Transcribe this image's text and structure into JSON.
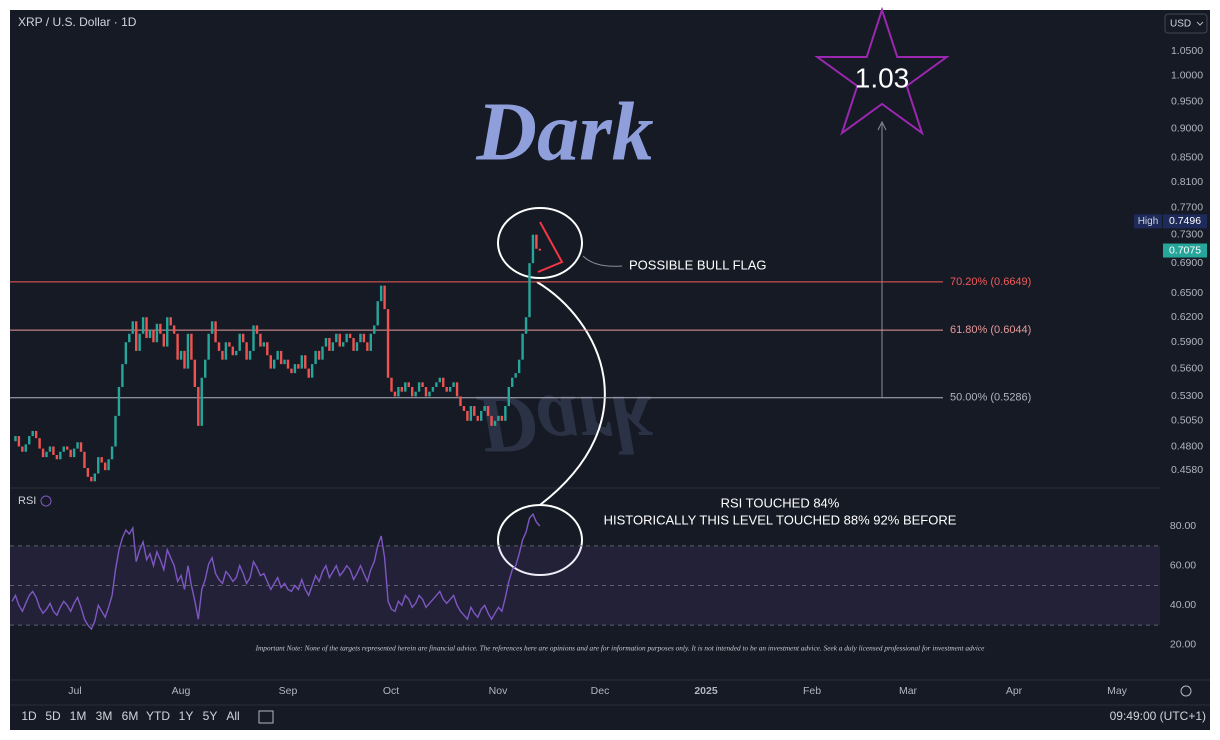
{
  "chart_data": {
    "type": "candlestick",
    "title": "XRP / U.S. Dollar · 1D",
    "currency": "USD",
    "log_scale": true,
    "up_color": "#26a69a",
    "down_color": "#ef5350",
    "closes": [
      0.485,
      0.49,
      0.48,
      0.475,
      0.482,
      0.49,
      0.495,
      0.488,
      0.478,
      0.47,
      0.475,
      0.48,
      0.472,
      0.468,
      0.475,
      0.48,
      0.477,
      0.47,
      0.478,
      0.484,
      0.475,
      0.46,
      0.452,
      0.448,
      0.455,
      0.47,
      0.465,
      0.458,
      0.468,
      0.48,
      0.51,
      0.54,
      0.565,
      0.59,
      0.6,
      0.615,
      0.58,
      0.6,
      0.62,
      0.595,
      0.605,
      0.59,
      0.612,
      0.6,
      0.585,
      0.62,
      0.61,
      0.6,
      0.57,
      0.58,
      0.56,
      0.6,
      0.57,
      0.54,
      0.5,
      0.55,
      0.57,
      0.6,
      0.615,
      0.59,
      0.58,
      0.57,
      0.59,
      0.585,
      0.575,
      0.58,
      0.6,
      0.59,
      0.57,
      0.58,
      0.61,
      0.6,
      0.585,
      0.59,
      0.575,
      0.56,
      0.57,
      0.58,
      0.565,
      0.57,
      0.56,
      0.555,
      0.565,
      0.56,
      0.575,
      0.56,
      0.55,
      0.565,
      0.58,
      0.57,
      0.585,
      0.595,
      0.58,
      0.59,
      0.6,
      0.585,
      0.59,
      0.6,
      0.595,
      0.58,
      0.59,
      0.6,
      0.59,
      0.58,
      0.6,
      0.61,
      0.64,
      0.66,
      0.63,
      0.55,
      0.535,
      0.53,
      0.54,
      0.535,
      0.545,
      0.54,
      0.53,
      0.535,
      0.545,
      0.54,
      0.53,
      0.535,
      0.54,
      0.545,
      0.55,
      0.54,
      0.535,
      0.54,
      0.545,
      0.53,
      0.52,
      0.515,
      0.505,
      0.52,
      0.51,
      0.505,
      0.515,
      0.52,
      0.51,
      0.5,
      0.505,
      0.51,
      0.505,
      0.52,
      0.54,
      0.55,
      0.555,
      0.57,
      0.6,
      0.62,
      0.69,
      0.73,
      0.71,
      0.7075
    ],
    "ylim": [
      0.443,
      1.139
    ],
    "yticks": [
      {
        "value": 1.05,
        "label": "1.0500"
      },
      {
        "value": 1.0,
        "label": "1.0000"
      },
      {
        "value": 0.95,
        "label": "0.9500"
      },
      {
        "value": 0.9,
        "label": "0.9000"
      },
      {
        "value": 0.85,
        "label": "0.8500"
      },
      {
        "value": 0.81,
        "label": "0.8100"
      },
      {
        "value": 0.77,
        "label": "0.7700"
      },
      {
        "value": 0.73,
        "label": "0.7300"
      },
      {
        "value": 0.69,
        "label": "0.6900"
      },
      {
        "value": 0.65,
        "label": "0.6500"
      },
      {
        "value": 0.62,
        "label": "0.6200"
      },
      {
        "value": 0.59,
        "label": "0.5900"
      },
      {
        "value": 0.56,
        "label": "0.5600"
      },
      {
        "value": 0.53,
        "label": "0.5300"
      },
      {
        "value": 0.505,
        "label": "0.5050"
      },
      {
        "value": 0.48,
        "label": "0.4800"
      },
      {
        "value": 0.458,
        "label": "0.4580"
      }
    ],
    "high": {
      "label": "High",
      "value": 0.7496
    },
    "last_price": 0.7075,
    "fib_levels": [
      {
        "value": 0.6649,
        "label": "70.20% (0.6649)",
        "color": "#f05a5a"
      },
      {
        "value": 0.6044,
        "label": "61.80% (0.6044)",
        "color": "#e89a9a"
      },
      {
        "value": 0.5286,
        "label": "50.00% (0.5286)",
        "color": "#b2b5be"
      }
    ],
    "x_labels": [
      "Jul",
      "Aug",
      "Sep",
      "Oct",
      "Nov",
      "Dec",
      "2025",
      "Feb",
      "Mar",
      "Apr",
      "May"
    ],
    "watermark": "Dark",
    "bull_flag_note": "POSSIBLE BULL FLAG",
    "target": "1.03",
    "rsi": {
      "name": "RSI",
      "color": "#7e57c2",
      "values": [
        42,
        45,
        40,
        37,
        41,
        45,
        47,
        44,
        39,
        36,
        38,
        41,
        37,
        35,
        39,
        42,
        40,
        37,
        41,
        44,
        39,
        33,
        30,
        28,
        32,
        40,
        37,
        34,
        39,
        45,
        58,
        68,
        74,
        78,
        76,
        79,
        62,
        68,
        72,
        63,
        66,
        60,
        67,
        63,
        58,
        68,
        64,
        60,
        52,
        55,
        48,
        60,
        50,
        42,
        33,
        48,
        53,
        61,
        64,
        56,
        53,
        51,
        57,
        55,
        52,
        54,
        60,
        56,
        51,
        54,
        62,
        59,
        55,
        56,
        52,
        48,
        51,
        54,
        49,
        51,
        48,
        47,
        50,
        48,
        53,
        48,
        45,
        50,
        55,
        52,
        57,
        60,
        54,
        57,
        60,
        55,
        57,
        60,
        58,
        53,
        56,
        60,
        56,
        52,
        58,
        62,
        70,
        75,
        64,
        42,
        38,
        37,
        42,
        40,
        45,
        43,
        39,
        41,
        45,
        43,
        39,
        41,
        43,
        45,
        47,
        43,
        41,
        43,
        45,
        40,
        37,
        35,
        33,
        39,
        36,
        34,
        38,
        40,
        36,
        33,
        36,
        39,
        37,
        44,
        52,
        58,
        60,
        66,
        73,
        77,
        84,
        86,
        82,
        80
      ],
      "ylim": [
        2.3,
        98.2
      ],
      "yticks": [
        {
          "value": 80,
          "label": "80.00"
        },
        {
          "value": 60,
          "label": "60.00"
        },
        {
          "value": 40,
          "label": "40.00"
        },
        {
          "value": 20,
          "label": "20.00"
        }
      ],
      "levels": [
        70,
        50,
        30
      ],
      "note": [
        "RSI TOUCHED 84%",
        "HISTORICALLY THIS LEVEL TOUCHED 88% 92% BEFORE"
      ]
    },
    "disclaimer": "Important Note: None of the targets represented herein are financial advice. The references here are opinions and are for information purposes only. It is not intended to be an investment advice. Seek a duly licensed professional for investment advice",
    "ranges": [
      "1D",
      "5D",
      "1M",
      "3M",
      "6M",
      "YTD",
      "1Y",
      "5Y",
      "All"
    ],
    "clock": "09:49:00 (UTC+1)"
  }
}
